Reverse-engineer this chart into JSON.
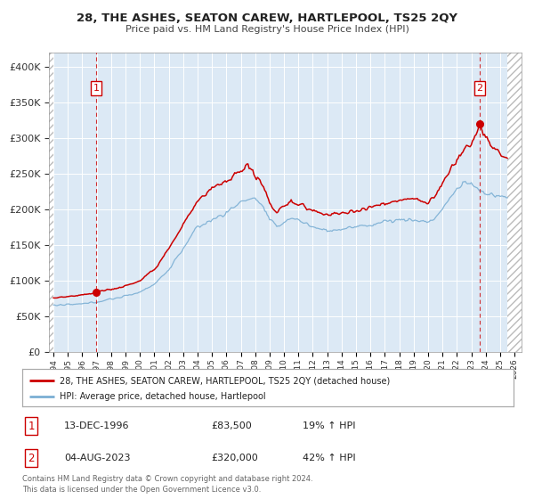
{
  "title": "28, THE ASHES, SEATON CAREW, HARTLEPOOL, TS25 2QY",
  "subtitle": "Price paid vs. HM Land Registry's House Price Index (HPI)",
  "legend_line1": "28, THE ASHES, SEATON CAREW, HARTLEPOOL, TS25 2QY (detached house)",
  "legend_line2": "HPI: Average price, detached house, Hartlepool",
  "transaction1_date": "13-DEC-1996",
  "transaction1_price": "£83,500",
  "transaction1_hpi": "19% ↑ HPI",
  "transaction2_date": "04-AUG-2023",
  "transaction2_price": "£320,000",
  "transaction2_hpi": "42% ↑ HPI",
  "footnote": "Contains HM Land Registry data © Crown copyright and database right 2024.\nThis data is licensed under the Open Government Licence v3.0.",
  "red_color": "#cc0000",
  "blue_color": "#7bafd4",
  "plot_bg_color": "#dce9f5",
  "hatch_bg_color": "#e8e8e8",
  "marker1_date_num": 1996.96,
  "marker1_value": 83500,
  "marker2_date_num": 2023.58,
  "marker2_value": 320000,
  "vline1_date": 1996.96,
  "vline2_date": 2023.58,
  "ylim_max": 420000,
  "xlim_start": 1993.7,
  "xlim_end": 2026.5,
  "data_xstart": 1994.0,
  "data_xend": 2025.5
}
